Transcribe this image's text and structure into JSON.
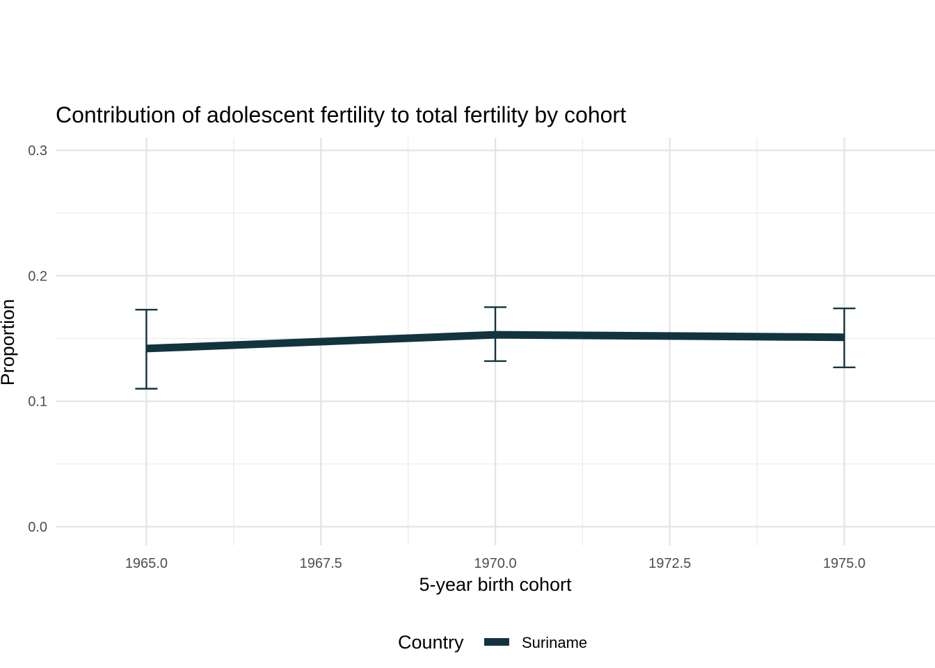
{
  "chart_data": {
    "type": "line",
    "title": "Contribution of adolescent fertility to total fertility by cohort",
    "xlabel": "5-year birth cohort",
    "ylabel": "Proportion",
    "xlim": [
      1963.7,
      1976.3
    ],
    "ylim": [
      -0.015,
      0.31
    ],
    "x_ticks": [
      1965.0,
      1967.5,
      1970.0,
      1972.5,
      1975.0
    ],
    "x_tick_labels": [
      "1965.0",
      "1967.5",
      "1970.0",
      "1972.5",
      "1975.0"
    ],
    "y_ticks": [
      0.0,
      0.1,
      0.2,
      0.3
    ],
    "y_tick_labels": [
      "0.0",
      "0.1",
      "0.2",
      "0.3"
    ],
    "grid": true,
    "legend": {
      "title": "Country",
      "position": "bottom"
    },
    "series": [
      {
        "name": "Suriname",
        "color": "#12343f",
        "x": [
          1965,
          1970,
          1975
        ],
        "y": [
          0.142,
          0.153,
          0.151
        ],
        "lower": [
          0.11,
          0.132,
          0.127
        ],
        "upper": [
          0.173,
          0.175,
          0.174
        ]
      }
    ]
  }
}
